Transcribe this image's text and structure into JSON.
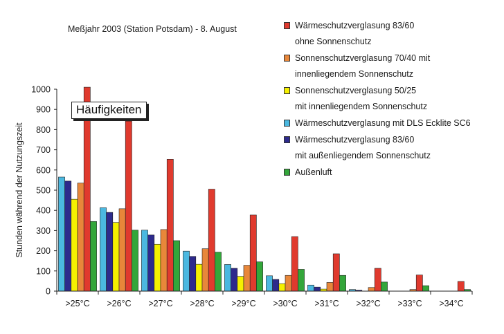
{
  "chart_data": {
    "type": "bar",
    "title": "Meßjahr 2003 (Station Potsdam) - 8. August",
    "ylabel": "Stunden während der Nutzungszeit",
    "xlabel": "",
    "ylim": [
      0,
      1000
    ],
    "yticks": [
      0,
      100,
      200,
      300,
      400,
      500,
      600,
      700,
      800,
      900,
      1000
    ],
    "categories": [
      ">25°C",
      ">26°C",
      ">27°C",
      ">28°C",
      ">29°C",
      ">30°C",
      ">31°C",
      ">32°C",
      ">33°C",
      ">34°C"
    ],
    "annotation": "Häufigkeiten",
    "grid": false,
    "legend_position": "right",
    "series": [
      {
        "name_lines": [
          "Wärmeschutzverglasung mit DLS Ecklite SC6"
        ],
        "legend_order": 4,
        "color": "#4bb8e0",
        "values": [
          565,
          413,
          302,
          198,
          132,
          76,
          30,
          8,
          0,
          0
        ]
      },
      {
        "name_lines": [
          "Wärmeschutzverglasung 83/60",
          "mit außenliegendem Sonnenschutz"
        ],
        "legend_order": 5,
        "color": "#2d2a8c",
        "values": [
          545,
          390,
          278,
          172,
          113,
          58,
          20,
          5,
          0,
          0
        ]
      },
      {
        "name_lines": [
          "Sonnenschutzverglasung 50/25",
          "mit innenliegendem Sonnenschutz"
        ],
        "legend_order": 3,
        "color": "#f5f000",
        "values": [
          455,
          340,
          232,
          133,
          73,
          37,
          10,
          0,
          0,
          0
        ]
      },
      {
        "name_lines": [
          "Sonnenschutzverglasung 70/40 mit",
          "innenliegendem Sonnenschutz"
        ],
        "legend_order": 2,
        "color": "#e8873a",
        "values": [
          535,
          408,
          305,
          210,
          128,
          78,
          43,
          18,
          8,
          0
        ]
      },
      {
        "name_lines": [
          "Wärmeschutzverglasung 83/60",
          "ohne Sonnenschutz"
        ],
        "legend_order": 1,
        "color": "#e03a2e",
        "values": [
          1010,
          842,
          653,
          505,
          377,
          270,
          185,
          113,
          80,
          48
        ]
      },
      {
        "name_lines": [
          "Außenluft"
        ],
        "legend_order": 6,
        "color": "#33a63a",
        "values": [
          345,
          302,
          250,
          193,
          145,
          108,
          78,
          45,
          27,
          8
        ]
      }
    ]
  }
}
